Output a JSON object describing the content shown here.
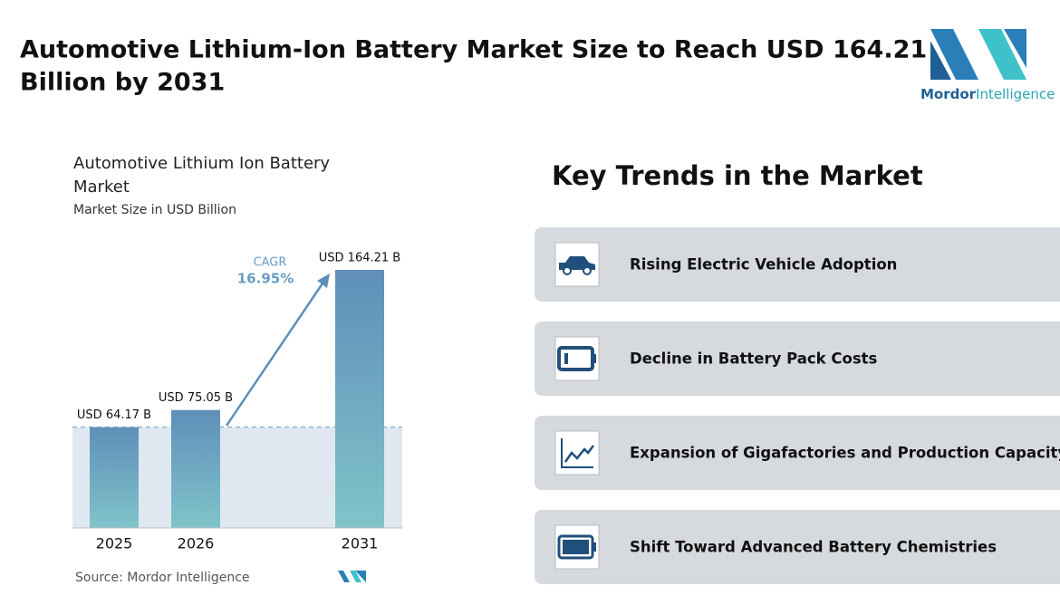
{
  "header": {
    "title_line1": "Automotive Lithium-Ion Battery Market Size to Reach USD 164.21",
    "title_line2": "Billion by 2031"
  },
  "logo": {
    "brand": "Mordor",
    "suffix": "Intelligence"
  },
  "chart_data": {
    "type": "bar",
    "title_line1": "Automotive Lithium Ion Battery",
    "title_line2": "Market",
    "subtitle": "Market Size in USD Billion",
    "categories": [
      "2025",
      "2026",
      "2031"
    ],
    "values": [
      64.17,
      75.05,
      164.21
    ],
    "value_labels": [
      "USD 64.17 B",
      "USD 75.05 B",
      "USD 164.21 B"
    ],
    "cagr_label": "CAGR",
    "cagr_value": "16.95%",
    "color_top": "#5f8fb9",
    "color_bottom": "#80c4ca",
    "source": "Source: Mordor Intelligence"
  },
  "trends": {
    "title": "Key Trends in the Market",
    "items": [
      "Rising Electric Vehicle Adoption",
      "Decline in Battery Pack Costs",
      "Expansion of Gigafactories and Production Capacity",
      "Shift Toward Advanced Battery Chemistries"
    ]
  }
}
